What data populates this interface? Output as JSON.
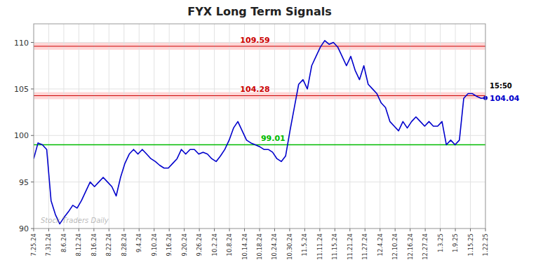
{
  "chart_data": {
    "type": "line",
    "title": "FYX Long Term Signals",
    "color": "#0000cc",
    "x": [
      0,
      0.288462,
      0.576923,
      0.865385,
      1.153846,
      1.442308,
      1.730769,
      2.019231,
      2.307692,
      2.596154,
      2.884615,
      3.173077,
      3.461538,
      3.75,
      4.038462,
      4.326923,
      4.615385,
      4.903846,
      5.192308,
      5.480769,
      5.769231,
      6.057692,
      6.346154,
      6.634615,
      6.923077,
      7.211538,
      7.5,
      7.788462,
      8.076923,
      8.365385,
      8.653846,
      8.942308,
      9.230769,
      9.519231,
      9.807692,
      10.096154,
      10.384615,
      10.673077,
      10.961538,
      11.25,
      11.538462,
      11.826923,
      12.115385,
      12.403846,
      12.692308,
      12.980769,
      13.269231,
      13.557692,
      13.846154,
      14.134615,
      14.423077,
      14.711538,
      15,
      15.288462,
      15.576923,
      15.865385,
      16.153846,
      16.442308,
      16.730769,
      17.019231,
      17.307692,
      17.596154,
      17.884615,
      18.173077,
      18.461538,
      18.75,
      19.038462,
      19.326923,
      19.615385,
      19.903846,
      20.192308,
      20.480769,
      20.769231,
      21.057692,
      21.346154,
      21.634615,
      21.923077,
      22.211538,
      22.5,
      22.788462,
      23.076923,
      23.365385,
      23.653846,
      23.942308,
      24.230769,
      24.519231,
      24.807692,
      25.096154,
      25.384615,
      25.673077,
      25.961538,
      26.25,
      26.538462,
      26.826923,
      27.115385,
      27.403846,
      27.692308,
      27.980769,
      28.269231,
      28.557692,
      28.846154,
      29.134615,
      29.423077,
      29.711538,
      30
    ],
    "values": [
      97.5,
      99.2,
      99.0,
      98.5,
      93.0,
      91.5,
      90.5,
      91.2,
      91.8,
      92.5,
      92.2,
      93.0,
      94.0,
      95.0,
      94.5,
      95.0,
      95.5,
      95.0,
      94.5,
      93.5,
      95.5,
      97.0,
      98.0,
      98.5,
      98.0,
      98.5,
      98.0,
      97.5,
      97.2,
      96.8,
      96.5,
      96.5,
      97.0,
      97.5,
      98.5,
      98.0,
      98.5,
      98.5,
      98.0,
      98.2,
      98.0,
      97.5,
      97.2,
      97.8,
      98.5,
      99.5,
      100.8,
      101.5,
      100.5,
      99.5,
      99.2,
      99.0,
      98.8,
      98.5,
      98.5,
      98.2,
      97.5,
      97.2,
      97.8,
      100.5,
      103.0,
      105.5,
      106.0,
      105.0,
      107.5,
      108.5,
      109.5,
      110.2,
      109.8,
      110.0,
      109.5,
      108.5,
      107.5,
      108.5,
      107.0,
      106.0,
      107.5,
      105.5,
      105.0,
      104.5,
      103.5,
      103.0,
      101.5,
      101.0,
      100.5,
      101.5,
      100.8,
      101.5,
      102.0,
      101.5,
      101.0,
      101.5,
      101.0,
      101.0,
      101.5,
      99.0,
      99.5,
      99.0,
      99.5,
      104.0,
      104.5,
      104.5,
      104.2,
      104.0,
      104.04
    ],
    "xlim": [
      0,
      30
    ],
    "xticks": [
      {
        "value": 0,
        "label": "7.25.24"
      },
      {
        "value": 1,
        "label": "7.31.24"
      },
      {
        "value": 2,
        "label": "8.6.24"
      },
      {
        "value": 3,
        "label": "8.12.24"
      },
      {
        "value": 4,
        "label": "8.16.24"
      },
      {
        "value": 5,
        "label": "8.22.24"
      },
      {
        "value": 6,
        "label": "8.28.24"
      },
      {
        "value": 7,
        "label": "9.4.24"
      },
      {
        "value": 8,
        "label": "9.10.24"
      },
      {
        "value": 9,
        "label": "9.16.24"
      },
      {
        "value": 10,
        "label": "9.20.24"
      },
      {
        "value": 11,
        "label": "9.26.24"
      },
      {
        "value": 12,
        "label": "10.2.24"
      },
      {
        "value": 13,
        "label": "10.8.24"
      },
      {
        "value": 14,
        "label": "10.14.24"
      },
      {
        "value": 15,
        "label": "10.18.24"
      },
      {
        "value": 16,
        "label": "10.24.24"
      },
      {
        "value": 17,
        "label": "10.30.24"
      },
      {
        "value": 18,
        "label": "11.5.24"
      },
      {
        "value": 19,
        "label": "11.11.24"
      },
      {
        "value": 20,
        "label": "11.15.24"
      },
      {
        "value": 21,
        "label": "11.21.24"
      },
      {
        "value": 22,
        "label": "11.27.24"
      },
      {
        "value": 23,
        "label": "12.4.24"
      },
      {
        "value": 24,
        "label": "12.10.24"
      },
      {
        "value": 25,
        "label": "12.16.24"
      },
      {
        "value": 26,
        "label": "12.27.24"
      },
      {
        "value": 27,
        "label": "1.3.25"
      },
      {
        "value": 28,
        "label": "1.9.25"
      },
      {
        "value": 29,
        "label": "1.15.25"
      },
      {
        "value": 30,
        "label": "1.22.25"
      }
    ],
    "ylim": [
      90,
      112
    ],
    "yticks": [
      90,
      95,
      100,
      105,
      110
    ],
    "grid": true,
    "reference_lines": [
      {
        "value": 109.59,
        "label": "109.59",
        "color": "#cc0000",
        "fill": "#ffcccc"
      },
      {
        "value": 104.28,
        "label": "104.28",
        "color": "#cc0000",
        "fill": "#ffcccc"
      },
      {
        "value": 99.01,
        "label": "99.01",
        "color": "#00bb00"
      }
    ],
    "end_time_label": "15:50",
    "end_price_label": "104.04",
    "watermark": "Stock Traders Daily"
  }
}
